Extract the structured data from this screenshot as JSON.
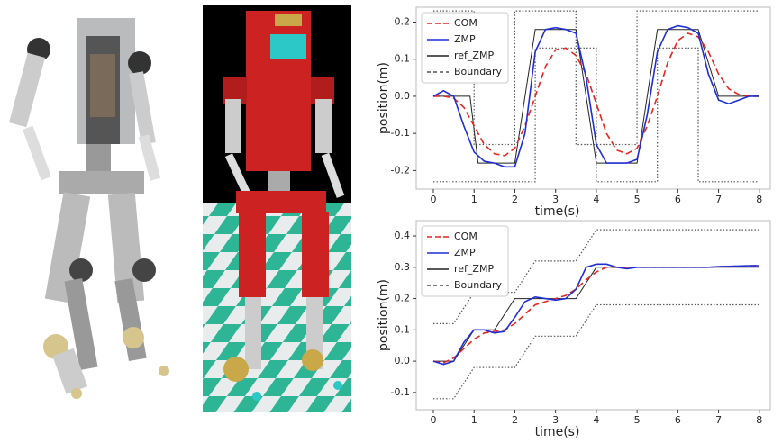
{
  "chart_data": [
    {
      "type": "line",
      "xlabel": "time(s)",
      "ylabel": "position(m)",
      "xlim": [
        -0.42,
        8.27
      ],
      "ylim": [
        -0.25,
        0.24
      ],
      "xticks": [
        0,
        1,
        2,
        3,
        4,
        5,
        6,
        7,
        8
      ],
      "yticks": [
        -0.2,
        -0.1,
        {
          "value": 0,
          "label": "0.0"
        },
        0.1,
        0.2
      ],
      "legend": "upper left",
      "x": [
        0,
        0.25,
        0.5,
        0.75,
        1,
        1.25,
        1.5,
        1.75,
        2,
        2.25,
        2.5,
        2.75,
        3,
        3.25,
        3.5,
        3.75,
        4,
        4.25,
        4.5,
        4.75,
        5,
        5.25,
        5.5,
        5.75,
        6,
        6.25,
        6.5,
        6.75,
        7,
        7.25,
        7.5,
        7.75,
        8
      ],
      "series": [
        {
          "name": "COM",
          "color": "#e8251f",
          "style": "dashed",
          "values": [
            0,
            0,
            -0.005,
            -0.03,
            -0.08,
            -0.13,
            -0.155,
            -0.16,
            -0.14,
            -0.08,
            0,
            0.08,
            0.125,
            0.13,
            0.11,
            0.06,
            -0.02,
            -0.1,
            -0.145,
            -0.155,
            -0.14,
            -0.08,
            0,
            0.09,
            0.15,
            0.17,
            0.16,
            0.12,
            0.06,
            0.02,
            0.005,
            0,
            0
          ]
        },
        {
          "name": "ZMP",
          "color": "#1f2fd6",
          "style": "solid",
          "values": [
            0,
            0.015,
            0,
            -0.08,
            -0.15,
            -0.175,
            -0.18,
            -0.19,
            -0.19,
            -0.1,
            0.12,
            0.18,
            0.185,
            0.18,
            0.17,
            0.05,
            -0.13,
            -0.18,
            -0.18,
            -0.18,
            -0.17,
            -0.05,
            0.12,
            0.18,
            0.19,
            0.185,
            0.17,
            0.06,
            -0.01,
            -0.02,
            -0.01,
            0,
            0
          ]
        },
        {
          "name": "ref_ZMP",
          "color": "#222222",
          "style": "thin",
          "x": [
            0,
            0.9,
            1.1,
            2.0,
            2.5,
            3.5,
            4.0,
            5.0,
            5.5,
            6.5,
            7.0,
            8
          ],
          "values": [
            0,
            0,
            -0.18,
            -0.18,
            0.18,
            0.18,
            -0.18,
            -0.18,
            0.18,
            0.18,
            0,
            0
          ]
        },
        {
          "name": "Boundary",
          "color": "#555555",
          "style": "dotted",
          "upper": {
            "x": [
              0,
              1,
              1,
              2,
              2,
              3.5,
              3.5,
              5,
              5,
              8
            ],
            "values": [
              0.23,
              0.23,
              -0.13,
              -0.13,
              0.23,
              0.23,
              -0.13,
              -0.13,
              0.23,
              0.23
            ]
          },
          "lower": {
            "x": [
              0,
              2.5,
              2.5,
              4,
              4,
              5.5,
              5.5,
              6.5,
              6.5,
              8
            ],
            "values": [
              -0.23,
              -0.23,
              0.13,
              0.13,
              -0.23,
              -0.23,
              0.13,
              0.13,
              -0.23,
              -0.23
            ]
          }
        }
      ]
    },
    {
      "type": "line",
      "xlabel": "time(s)",
      "ylabel": "position(m)",
      "xlim": [
        -0.42,
        8.27
      ],
      "ylim": [
        -0.155,
        0.449
      ],
      "xticks": [
        0,
        1,
        2,
        3,
        4,
        5,
        6,
        7,
        8
      ],
      "yticks": [
        -0.1,
        {
          "value": 0,
          "label": "0.0"
        },
        0.1,
        0.2,
        0.3,
        0.4
      ],
      "legend": "upper left",
      "x": [
        0,
        0.25,
        0.5,
        0.75,
        1,
        1.25,
        1.5,
        1.75,
        2,
        2.25,
        2.5,
        2.75,
        3,
        3.25,
        3.5,
        3.75,
        4,
        4.25,
        4.5,
        4.75,
        5,
        5.25,
        5.5,
        5.75,
        6,
        6.25,
        6.5,
        6.75,
        7,
        7.25,
        7.5,
        7.75,
        8
      ],
      "series": [
        {
          "name": "COM",
          "color": "#e8251f",
          "style": "dashed",
          "values": [
            0,
            -0.005,
            0.01,
            0.04,
            0.07,
            0.09,
            0.095,
            0.1,
            0.12,
            0.15,
            0.18,
            0.19,
            0.2,
            0.21,
            0.23,
            0.26,
            0.285,
            0.3,
            0.3,
            0.3,
            0.3,
            0.3,
            0.3,
            0.3,
            0.3,
            0.3,
            0.3,
            0.3,
            0.302,
            0.303,
            0.304,
            0.305,
            0.305
          ]
        },
        {
          "name": "ZMP",
          "color": "#1f2fd6",
          "style": "solid",
          "values": [
            0,
            -0.01,
            0,
            0.06,
            0.1,
            0.1,
            0.09,
            0.095,
            0.14,
            0.19,
            0.205,
            0.2,
            0.195,
            0.2,
            0.23,
            0.3,
            0.31,
            0.31,
            0.3,
            0.295,
            0.3,
            0.3,
            0.3,
            0.3,
            0.3,
            0.3,
            0.3,
            0.3,
            0.302,
            0.303,
            0.304,
            0.305,
            0.305
          ]
        },
        {
          "name": "ref_ZMP",
          "color": "#222222",
          "style": "thin",
          "x": [
            0,
            0.5,
            1,
            1.5,
            2,
            3.5,
            4,
            8
          ],
          "values": [
            0,
            0,
            0.1,
            0.1,
            0.2,
            0.2,
            0.3,
            0.3
          ]
        },
        {
          "name": "Boundary",
          "color": "#555555",
          "style": "dotted",
          "upper": {
            "x": [
              0,
              0.5,
              1,
              2,
              2.5,
              3.5,
              4,
              8
            ],
            "values": [
              0.12,
              0.12,
              0.22,
              0.22,
              0.32,
              0.32,
              0.42,
              0.42
            ]
          },
          "lower": {
            "x": [
              0,
              0.5,
              1,
              2,
              2.5,
              3.5,
              4,
              8
            ],
            "values": [
              -0.12,
              -0.12,
              -0.02,
              -0.02,
              0.08,
              0.08,
              0.18,
              0.18
            ]
          }
        }
      ]
    }
  ]
}
